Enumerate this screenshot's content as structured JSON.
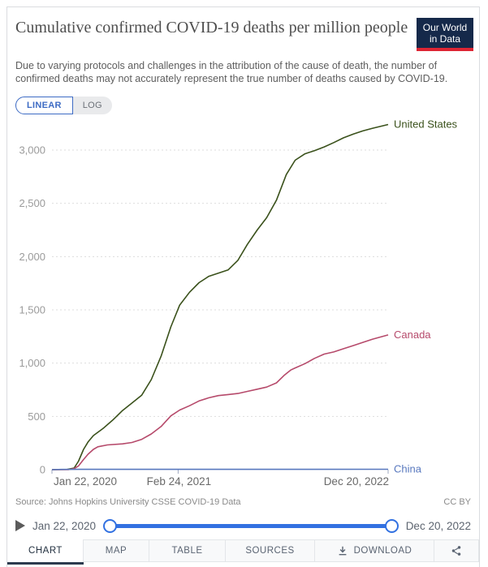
{
  "header": {
    "title": "Cumulative confirmed COVID-19 deaths per million people",
    "subtitle": "Due to varying protocols and challenges in the attribution of the cause of death, the number of confirmed deaths may not accurately represent the true number of deaths caused by COVID-19.",
    "logo": {
      "line1": "Our World",
      "line2": "in Data",
      "bg_color": "#15294a",
      "accent_color": "#dd2533"
    }
  },
  "scale_toggle": {
    "linear_label": "LINEAR",
    "log_label": "LOG",
    "selected": "LINEAR",
    "accent_color": "#3d6bc4"
  },
  "chart_data": {
    "type": "line",
    "title": "Cumulative confirmed COVID-19 deaths per million people",
    "x_start": "2020-01-22",
    "x_end": "2022-12-20",
    "x_ticks": [
      {
        "label": "Jan 22, 2020",
        "date": "2020-01-22",
        "align": "start"
      },
      {
        "label": "Feb 24, 2021",
        "date": "2021-02-24",
        "align": "middle"
      },
      {
        "label": "Dec 20, 2022",
        "date": "2022-12-20",
        "align": "end"
      }
    ],
    "y_ticks": [
      0,
      500,
      1000,
      1500,
      2000,
      2500,
      3000
    ],
    "y_tick_labels": [
      "0",
      "500",
      "1,000",
      "1,500",
      "2,000",
      "2,500",
      "3,000"
    ],
    "ylim": [
      0,
      3250
    ],
    "grid": true,
    "legend_position": "line-end-labels",
    "series": [
      {
        "name": "United States",
        "color": "#3A511B",
        "points": [
          [
            "2020-01-22",
            0
          ],
          [
            "2020-03-10",
            2
          ],
          [
            "2020-04-01",
            15
          ],
          [
            "2020-04-15",
            80
          ],
          [
            "2020-05-01",
            190
          ],
          [
            "2020-05-15",
            260
          ],
          [
            "2020-06-01",
            320
          ],
          [
            "2020-07-01",
            385
          ],
          [
            "2020-08-01",
            465
          ],
          [
            "2020-09-01",
            555
          ],
          [
            "2020-10-01",
            625
          ],
          [
            "2020-11-01",
            700
          ],
          [
            "2020-12-01",
            845
          ],
          [
            "2021-01-01",
            1065
          ],
          [
            "2021-02-01",
            1340
          ],
          [
            "2021-03-01",
            1545
          ],
          [
            "2021-04-01",
            1665
          ],
          [
            "2021-05-01",
            1755
          ],
          [
            "2021-06-01",
            1815
          ],
          [
            "2021-07-01",
            1845
          ],
          [
            "2021-08-01",
            1875
          ],
          [
            "2021-09-01",
            1965
          ],
          [
            "2021-10-01",
            2115
          ],
          [
            "2021-11-01",
            2250
          ],
          [
            "2021-12-01",
            2365
          ],
          [
            "2022-01-01",
            2530
          ],
          [
            "2022-02-01",
            2770
          ],
          [
            "2022-03-01",
            2905
          ],
          [
            "2022-04-01",
            2965
          ],
          [
            "2022-05-01",
            2995
          ],
          [
            "2022-06-01",
            3030
          ],
          [
            "2022-07-01",
            3070
          ],
          [
            "2022-08-01",
            3115
          ],
          [
            "2022-09-01",
            3150
          ],
          [
            "2022-10-01",
            3180
          ],
          [
            "2022-11-01",
            3205
          ],
          [
            "2022-12-20",
            3240
          ]
        ]
      },
      {
        "name": "Canada",
        "color": "#B64A6B",
        "points": [
          [
            "2020-01-22",
            0
          ],
          [
            "2020-03-15",
            1
          ],
          [
            "2020-04-01",
            10
          ],
          [
            "2020-04-15",
            35
          ],
          [
            "2020-05-01",
            95
          ],
          [
            "2020-05-15",
            145
          ],
          [
            "2020-06-01",
            190
          ],
          [
            "2020-06-15",
            215
          ],
          [
            "2020-07-15",
            232
          ],
          [
            "2020-09-01",
            242
          ],
          [
            "2020-10-01",
            255
          ],
          [
            "2020-11-01",
            285
          ],
          [
            "2020-12-01",
            335
          ],
          [
            "2021-01-01",
            405
          ],
          [
            "2021-02-01",
            505
          ],
          [
            "2021-03-01",
            560
          ],
          [
            "2021-04-01",
            600
          ],
          [
            "2021-05-01",
            645
          ],
          [
            "2021-06-01",
            675
          ],
          [
            "2021-07-01",
            695
          ],
          [
            "2021-08-01",
            705
          ],
          [
            "2021-09-01",
            715
          ],
          [
            "2021-10-01",
            735
          ],
          [
            "2021-11-01",
            755
          ],
          [
            "2021-12-01",
            775
          ],
          [
            "2022-01-01",
            815
          ],
          [
            "2022-01-25",
            885
          ],
          [
            "2022-02-15",
            935
          ],
          [
            "2022-03-01",
            955
          ],
          [
            "2022-04-01",
            995
          ],
          [
            "2022-05-01",
            1045
          ],
          [
            "2022-06-01",
            1085
          ],
          [
            "2022-07-01",
            1105
          ],
          [
            "2022-08-01",
            1135
          ],
          [
            "2022-09-01",
            1165
          ],
          [
            "2022-10-01",
            1195
          ],
          [
            "2022-11-01",
            1225
          ],
          [
            "2022-12-20",
            1265
          ]
        ]
      },
      {
        "name": "China",
        "color": "#5878BE",
        "points": [
          [
            "2020-01-22",
            0
          ],
          [
            "2020-02-20",
            2
          ],
          [
            "2020-04-17",
            3.2
          ],
          [
            "2021-06-01",
            3.4
          ],
          [
            "2022-12-20",
            3.6
          ]
        ]
      }
    ]
  },
  "footer": {
    "source": "Source: Johns Hopkins University CSSE COVID-19 Data",
    "license": "CC BY"
  },
  "timeline": {
    "start_label": "Jan 22, 2020",
    "end_label": "Dec 20, 2022",
    "track_color": "#3271e1"
  },
  "tabs": [
    {
      "label": "CHART",
      "active": true
    },
    {
      "label": "MAP",
      "active": false
    },
    {
      "label": "TABLE",
      "active": false
    },
    {
      "label": "SOURCES",
      "active": false
    },
    {
      "label": "DOWNLOAD",
      "active": false,
      "icon": "download"
    },
    {
      "label": "",
      "active": false,
      "icon": "share"
    }
  ]
}
